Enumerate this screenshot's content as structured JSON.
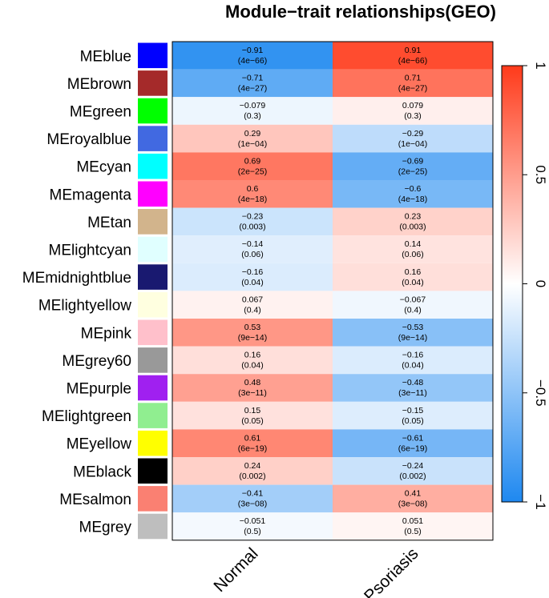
{
  "chart_data": {
    "type": "heatmap",
    "title": "Module−trait relationships(GEO)",
    "columns": [
      "Normal",
      "Psoriasis"
    ],
    "rows": [
      {
        "module": "MEblue",
        "color": "#0000FF",
        "values": [
          -0.91,
          0.91
        ],
        "labels": [
          "−0.91",
          "0.91"
        ],
        "pvalues": [
          "(4e−66)",
          "(4e−66)"
        ]
      },
      {
        "module": "MEbrown",
        "color": "#A52A2A",
        "values": [
          -0.71,
          0.71
        ],
        "labels": [
          "−0.71",
          "0.71"
        ],
        "pvalues": [
          "(4e−27)",
          "(4e−27)"
        ]
      },
      {
        "module": "MEgreen",
        "color": "#00FF00",
        "values": [
          -0.079,
          0.079
        ],
        "labels": [
          "−0.079",
          "0.079"
        ],
        "pvalues": [
          "(0.3)",
          "(0.3)"
        ]
      },
      {
        "module": "MEroyalblue",
        "color": "#4169E1",
        "values": [
          0.29,
          -0.29
        ],
        "labels": [
          "0.29",
          "−0.29"
        ],
        "pvalues": [
          "(1e−04)",
          "(1e−04)"
        ]
      },
      {
        "module": "MEcyan",
        "color": "#00FFFF",
        "values": [
          0.69,
          -0.69
        ],
        "labels": [
          "0.69",
          "−0.69"
        ],
        "pvalues": [
          "(2e−25)",
          "(2e−25)"
        ]
      },
      {
        "module": "MEmagenta",
        "color": "#FF00FF",
        "values": [
          0.6,
          -0.6
        ],
        "labels": [
          "0.6",
          "−0.6"
        ],
        "pvalues": [
          "(4e−18)",
          "(4e−18)"
        ]
      },
      {
        "module": "MEtan",
        "color": "#D2B48C",
        "values": [
          -0.23,
          0.23
        ],
        "labels": [
          "−0.23",
          "0.23"
        ],
        "pvalues": [
          "(0.003)",
          "(0.003)"
        ]
      },
      {
        "module": "MElightcyan",
        "color": "#E0FFFF",
        "values": [
          -0.14,
          0.14
        ],
        "labels": [
          "−0.14",
          "0.14"
        ],
        "pvalues": [
          "(0.06)",
          "(0.06)"
        ]
      },
      {
        "module": "MEmidnightblue",
        "color": "#191970",
        "values": [
          -0.16,
          0.16
        ],
        "labels": [
          "−0.16",
          "0.16"
        ],
        "pvalues": [
          "(0.04)",
          "(0.04)"
        ]
      },
      {
        "module": "MElightyellow",
        "color": "#FFFFE0",
        "values": [
          0.067,
          -0.067
        ],
        "labels": [
          "0.067",
          "−0.067"
        ],
        "pvalues": [
          "(0.4)",
          "(0.4)"
        ]
      },
      {
        "module": "MEpink",
        "color": "#FFC0CB",
        "values": [
          0.53,
          -0.53
        ],
        "labels": [
          "0.53",
          "−0.53"
        ],
        "pvalues": [
          "(9e−14)",
          "(9e−14)"
        ]
      },
      {
        "module": "MEgrey60",
        "color": "#999999",
        "values": [
          0.16,
          -0.16
        ],
        "labels": [
          "0.16",
          "−0.16"
        ],
        "pvalues": [
          "(0.04)",
          "(0.04)"
        ]
      },
      {
        "module": "MEpurple",
        "color": "#A020F0",
        "values": [
          0.48,
          -0.48
        ],
        "labels": [
          "0.48",
          "−0.48"
        ],
        "pvalues": [
          "(3e−11)",
          "(3e−11)"
        ]
      },
      {
        "module": "MElightgreen",
        "color": "#90EE90",
        "values": [
          0.15,
          -0.15
        ],
        "labels": [
          "0.15",
          "−0.15"
        ],
        "pvalues": [
          "(0.05)",
          "(0.05)"
        ]
      },
      {
        "module": "MEyellow",
        "color": "#FFFF00",
        "values": [
          0.61,
          -0.61
        ],
        "labels": [
          "0.61",
          "−0.61"
        ],
        "pvalues": [
          "(6e−19)",
          "(6e−19)"
        ]
      },
      {
        "module": "MEblack",
        "color": "#000000",
        "values": [
          0.24,
          -0.24
        ],
        "labels": [
          "0.24",
          "−0.24"
        ],
        "pvalues": [
          "(0.002)",
          "(0.002)"
        ]
      },
      {
        "module": "MEsalmon",
        "color": "#FA8072",
        "values": [
          -0.41,
          0.41
        ],
        "labels": [
          "−0.41",
          "0.41"
        ],
        "pvalues": [
          "(3e−08)",
          "(3e−08)"
        ]
      },
      {
        "module": "MEgrey",
        "color": "#BEBEBE",
        "values": [
          -0.051,
          0.051
        ],
        "labels": [
          "−0.051",
          "0.051"
        ],
        "pvalues": [
          "(0.5)",
          "(0.5)"
        ]
      }
    ],
    "colorscale": {
      "min": -1,
      "max": 1,
      "low_color": "#1E88F0",
      "mid_color": "#FFFFFF",
      "high_color": "#FF3A1A",
      "ticks": [
        -1,
        -0.5,
        0,
        0.5,
        1
      ],
      "tick_labels": [
        "−1",
        "−0.5",
        "0",
        "0.5",
        "1"
      ]
    }
  }
}
